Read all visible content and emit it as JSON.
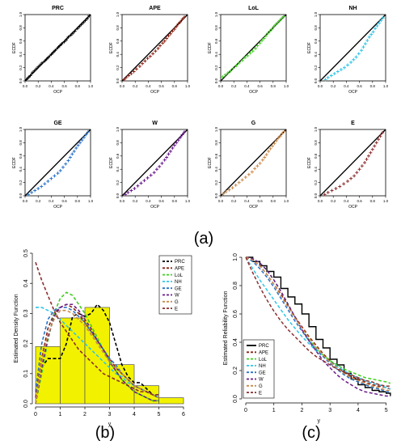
{
  "panel_labels": [
    "(a)",
    "(b)",
    "(c)"
  ],
  "chart_data": [
    {
      "type": "scatter",
      "panel": "(a)",
      "layout": "grid 2x4",
      "xlabel": "OCP",
      "ylabel": "ECDF",
      "xlim": [
        0,
        1
      ],
      "ylim": [
        0,
        1
      ],
      "xticks": [
        "0.0",
        "0.2",
        "0.4",
        "0.6",
        "0.8",
        "1.0"
      ],
      "yticks": [
        "0.0",
        "0.2",
        "0.4",
        "0.6",
        "0.8",
        "1.0"
      ],
      "reference_line": "y = x",
      "subplots": [
        {
          "title": "PRC",
          "color": "#000000",
          "ocp": [
            0.02,
            0.05,
            0.08,
            0.11,
            0.14,
            0.17,
            0.2,
            0.23,
            0.26,
            0.3,
            0.33,
            0.36,
            0.4,
            0.43,
            0.46,
            0.5,
            0.53,
            0.56,
            0.6,
            0.63,
            0.66,
            0.7,
            0.73,
            0.76,
            0.8,
            0.83,
            0.86,
            0.89,
            0.92,
            0.95,
            0.98
          ],
          "ecdf": [
            0.02,
            0.05,
            0.08,
            0.12,
            0.15,
            0.18,
            0.21,
            0.24,
            0.27,
            0.3,
            0.33,
            0.36,
            0.4,
            0.43,
            0.46,
            0.5,
            0.53,
            0.56,
            0.59,
            0.62,
            0.66,
            0.69,
            0.72,
            0.75,
            0.79,
            0.82,
            0.85,
            0.88,
            0.91,
            0.94,
            0.98
          ]
        },
        {
          "title": "APE",
          "color": "#8b2213",
          "ocp": [
            0.03,
            0.06,
            0.1,
            0.14,
            0.18,
            0.22,
            0.27,
            0.31,
            0.35,
            0.39,
            0.43,
            0.47,
            0.51,
            0.55,
            0.58,
            0.62,
            0.65,
            0.68,
            0.71,
            0.74,
            0.77,
            0.8,
            0.83,
            0.86,
            0.89,
            0.92,
            0.95
          ],
          "ecdf": [
            0.02,
            0.05,
            0.08,
            0.11,
            0.14,
            0.18,
            0.22,
            0.26,
            0.3,
            0.34,
            0.37,
            0.41,
            0.45,
            0.49,
            0.53,
            0.57,
            0.6,
            0.64,
            0.68,
            0.71,
            0.75,
            0.78,
            0.82,
            0.86,
            0.89,
            0.93,
            0.96
          ]
        },
        {
          "title": "LoL",
          "color": "#3fcf1f",
          "ocp": [
            0.03,
            0.07,
            0.11,
            0.15,
            0.19,
            0.24,
            0.28,
            0.33,
            0.37,
            0.41,
            0.45,
            0.49,
            0.53,
            0.56,
            0.6,
            0.63,
            0.66,
            0.69,
            0.72,
            0.75,
            0.78,
            0.81,
            0.84,
            0.87,
            0.9,
            0.93,
            0.96
          ],
          "ecdf": [
            0.06,
            0.09,
            0.12,
            0.15,
            0.19,
            0.23,
            0.27,
            0.31,
            0.35,
            0.38,
            0.42,
            0.45,
            0.49,
            0.53,
            0.57,
            0.61,
            0.64,
            0.68,
            0.72,
            0.75,
            0.78,
            0.82,
            0.85,
            0.88,
            0.91,
            0.94,
            0.97
          ]
        },
        {
          "title": "NH",
          "color": "#2ec5e8",
          "ocp": [
            0.08,
            0.12,
            0.17,
            0.22,
            0.27,
            0.32,
            0.37,
            0.42,
            0.47,
            0.51,
            0.55,
            0.59,
            0.63,
            0.66,
            0.69,
            0.72,
            0.75,
            0.78,
            0.81,
            0.84,
            0.87,
            0.9,
            0.93,
            0.96
          ],
          "ecdf": [
            0.02,
            0.05,
            0.08,
            0.11,
            0.14,
            0.17,
            0.2,
            0.24,
            0.28,
            0.32,
            0.36,
            0.41,
            0.46,
            0.51,
            0.56,
            0.61,
            0.66,
            0.7,
            0.74,
            0.79,
            0.83,
            0.87,
            0.91,
            0.95
          ]
        },
        {
          "title": "GE",
          "color": "#2a73c8",
          "ocp": [
            0.05,
            0.1,
            0.15,
            0.2,
            0.25,
            0.3,
            0.35,
            0.4,
            0.45,
            0.5,
            0.54,
            0.58,
            0.62,
            0.66,
            0.69,
            0.72,
            0.75,
            0.78,
            0.81,
            0.84,
            0.87,
            0.9,
            0.93,
            0.96
          ],
          "ecdf": [
            0.02,
            0.05,
            0.08,
            0.11,
            0.14,
            0.18,
            0.22,
            0.26,
            0.3,
            0.34,
            0.38,
            0.43,
            0.48,
            0.53,
            0.58,
            0.63,
            0.67,
            0.72,
            0.76,
            0.8,
            0.84,
            0.88,
            0.92,
            0.96
          ]
        },
        {
          "title": "W",
          "color": "#6a1b8a",
          "ocp": [
            0.05,
            0.09,
            0.14,
            0.19,
            0.24,
            0.29,
            0.34,
            0.39,
            0.44,
            0.49,
            0.53,
            0.57,
            0.61,
            0.65,
            0.68,
            0.71,
            0.74,
            0.77,
            0.8,
            0.83,
            0.86,
            0.89,
            0.92,
            0.95
          ],
          "ecdf": [
            0.02,
            0.05,
            0.08,
            0.11,
            0.15,
            0.19,
            0.23,
            0.27,
            0.31,
            0.35,
            0.4,
            0.44,
            0.49,
            0.54,
            0.58,
            0.63,
            0.67,
            0.72,
            0.76,
            0.8,
            0.84,
            0.88,
            0.92,
            0.96
          ]
        },
        {
          "title": "G",
          "color": "#c98a4b",
          "ocp": [
            0.04,
            0.08,
            0.13,
            0.18,
            0.23,
            0.28,
            0.33,
            0.38,
            0.43,
            0.48,
            0.52,
            0.56,
            0.6,
            0.64,
            0.67,
            0.7,
            0.73,
            0.76,
            0.79,
            0.82,
            0.85,
            0.88,
            0.91,
            0.94,
            0.97
          ],
          "ecdf": [
            0.03,
            0.06,
            0.09,
            0.12,
            0.16,
            0.2,
            0.24,
            0.28,
            0.32,
            0.36,
            0.41,
            0.45,
            0.49,
            0.54,
            0.58,
            0.62,
            0.67,
            0.71,
            0.75,
            0.79,
            0.83,
            0.87,
            0.9,
            0.94,
            0.97
          ]
        },
        {
          "title": "E",
          "color": "#8b2e2e",
          "ocp": [
            0.07,
            0.12,
            0.18,
            0.24,
            0.3,
            0.36,
            0.42,
            0.47,
            0.52,
            0.56,
            0.6,
            0.64,
            0.68,
            0.71,
            0.74,
            0.77,
            0.8,
            0.83,
            0.86,
            0.89,
            0.92,
            0.95
          ],
          "ecdf": [
            0.02,
            0.05,
            0.08,
            0.11,
            0.14,
            0.18,
            0.22,
            0.26,
            0.3,
            0.35,
            0.4,
            0.45,
            0.5,
            0.55,
            0.6,
            0.65,
            0.7,
            0.75,
            0.8,
            0.85,
            0.9,
            0.95
          ]
        }
      ]
    },
    {
      "type": "bar",
      "panel": "(b)",
      "xlabel": "y",
      "ylabel": "Estimated Density Function",
      "xlim": [
        0,
        6
      ],
      "ylim": [
        0,
        0.5
      ],
      "xticks": [
        "0",
        "1",
        "2",
        "3",
        "4",
        "5",
        "6"
      ],
      "yticks": [
        "0.0",
        "0.1",
        "0.2",
        "0.3",
        "0.4",
        "0.5"
      ],
      "histogram": {
        "bin_edges": [
          0,
          1,
          2,
          3,
          4,
          5,
          6
        ],
        "densities": [
          0.19,
          0.285,
          0.32,
          0.13,
          0.06,
          0.02
        ],
        "fill": "#f2f200",
        "stroke": "#555555"
      },
      "curves_x": [
        0,
        0.25,
        0.5,
        0.75,
        1,
        1.25,
        1.5,
        1.75,
        2,
        2.25,
        2.5,
        2.75,
        3,
        3.25,
        3.5,
        3.75,
        4,
        4.25,
        4.5,
        4.75,
        5
      ],
      "series": [
        {
          "name": "PRC",
          "color": "#000000",
          "values": [
            0.0,
            0.12,
            0.15,
            0.15,
            0.15,
            0.2,
            0.29,
            0.3,
            0.29,
            0.3,
            0.33,
            0.31,
            0.27,
            0.2,
            0.13,
            0.09,
            0.07,
            0.07,
            0.05,
            0.03,
            0.02
          ]
        },
        {
          "name": "APE",
          "color": "#8b2213",
          "values": [
            0.02,
            0.15,
            0.25,
            0.3,
            0.32,
            0.33,
            0.32,
            0.3,
            0.27,
            0.24,
            0.21,
            0.18,
            0.15,
            0.12,
            0.1,
            0.08,
            0.06,
            0.05,
            0.04,
            0.03,
            0.02
          ]
        },
        {
          "name": "LoL",
          "color": "#3fcf1f",
          "values": [
            0.0,
            0.1,
            0.21,
            0.3,
            0.35,
            0.37,
            0.36,
            0.33,
            0.3,
            0.26,
            0.22,
            0.18,
            0.14,
            0.11,
            0.08,
            0.06,
            0.04,
            0.03,
            0.02,
            0.01,
            0.01
          ]
        },
        {
          "name": "NH",
          "color": "#2ec5e8",
          "values": [
            0.32,
            0.32,
            0.31,
            0.3,
            0.28,
            0.26,
            0.24,
            0.22,
            0.2,
            0.18,
            0.16,
            0.14,
            0.12,
            0.1,
            0.09,
            0.07,
            0.06,
            0.05,
            0.04,
            0.03,
            0.03
          ]
        },
        {
          "name": "GE",
          "color": "#2a73c8",
          "values": [
            0.04,
            0.2,
            0.28,
            0.31,
            0.32,
            0.32,
            0.31,
            0.29,
            0.27,
            0.24,
            0.21,
            0.18,
            0.15,
            0.13,
            0.1,
            0.08,
            0.06,
            0.05,
            0.04,
            0.03,
            0.02
          ]
        },
        {
          "name": "W",
          "color": "#6a1b8a",
          "values": [
            0.0,
            0.12,
            0.22,
            0.29,
            0.32,
            0.33,
            0.33,
            0.31,
            0.28,
            0.25,
            0.21,
            0.18,
            0.14,
            0.11,
            0.08,
            0.06,
            0.04,
            0.03,
            0.02,
            0.01,
            0.01
          ]
        },
        {
          "name": "G",
          "color": "#c98a4b",
          "values": [
            0.0,
            0.14,
            0.23,
            0.28,
            0.31,
            0.31,
            0.3,
            0.28,
            0.26,
            0.23,
            0.2,
            0.17,
            0.14,
            0.12,
            0.1,
            0.08,
            0.06,
            0.05,
            0.04,
            0.03,
            0.02
          ]
        },
        {
          "name": "E",
          "color": "#8b2e2e",
          "values": [
            0.47,
            0.41,
            0.36,
            0.31,
            0.27,
            0.24,
            0.21,
            0.18,
            0.16,
            0.14,
            0.12,
            0.1,
            0.09,
            0.08,
            0.07,
            0.06,
            0.05,
            0.04,
            0.04,
            0.03,
            0.03
          ]
        }
      ],
      "legend": "top-right"
    },
    {
      "type": "line",
      "panel": "(c)",
      "xlabel": "y",
      "ylabel": "Estimated Reliability Function",
      "xlim": [
        0,
        5.2
      ],
      "ylim": [
        0,
        1
      ],
      "xticks": [
        "0",
        "1",
        "2",
        "3",
        "4",
        "5"
      ],
      "yticks": [
        "0.0",
        "0.2",
        "0.4",
        "0.6",
        "0.8",
        "1.0"
      ],
      "x": [
        0,
        0.25,
        0.5,
        0.75,
        1,
        1.25,
        1.5,
        1.75,
        2,
        2.25,
        2.5,
        2.75,
        3,
        3.25,
        3.5,
        3.75,
        4,
        4.25,
        4.5,
        4.75,
        5,
        5.15
      ],
      "series": [
        {
          "name": "PRC",
          "color": "#000000",
          "step": true,
          "values": [
            1.0,
            0.97,
            0.94,
            0.9,
            0.86,
            0.78,
            0.72,
            0.67,
            0.6,
            0.51,
            0.42,
            0.36,
            0.28,
            0.24,
            0.18,
            0.14,
            0.1,
            0.08,
            0.06,
            0.05,
            0.04,
            0.02
          ]
        },
        {
          "name": "APE",
          "color": "#8b2213",
          "values": [
            1.0,
            0.98,
            0.94,
            0.88,
            0.81,
            0.74,
            0.66,
            0.58,
            0.51,
            0.44,
            0.38,
            0.32,
            0.27,
            0.23,
            0.19,
            0.16,
            0.14,
            0.12,
            0.1,
            0.09,
            0.08,
            0.07
          ]
        },
        {
          "name": "LoL",
          "color": "#3fcf1f",
          "values": [
            1.0,
            0.99,
            0.96,
            0.91,
            0.84,
            0.76,
            0.67,
            0.58,
            0.49,
            0.42,
            0.36,
            0.31,
            0.27,
            0.24,
            0.21,
            0.19,
            0.17,
            0.15,
            0.14,
            0.13,
            0.12,
            0.11
          ]
        },
        {
          "name": "NH",
          "color": "#2ec5e8",
          "values": [
            1.0,
            0.92,
            0.84,
            0.77,
            0.7,
            0.63,
            0.56,
            0.5,
            0.44,
            0.39,
            0.34,
            0.3,
            0.26,
            0.23,
            0.2,
            0.17,
            0.15,
            0.13,
            0.11,
            0.1,
            0.08,
            0.07
          ]
        },
        {
          "name": "GE",
          "color": "#2a73c8",
          "values": [
            1.0,
            0.97,
            0.92,
            0.86,
            0.79,
            0.71,
            0.63,
            0.55,
            0.48,
            0.41,
            0.35,
            0.3,
            0.25,
            0.21,
            0.17,
            0.14,
            0.12,
            0.1,
            0.08,
            0.07,
            0.05,
            0.05
          ]
        },
        {
          "name": "W",
          "color": "#6a1b8a",
          "values": [
            1.0,
            0.99,
            0.96,
            0.91,
            0.84,
            0.76,
            0.67,
            0.58,
            0.49,
            0.41,
            0.34,
            0.27,
            0.22,
            0.17,
            0.13,
            0.1,
            0.07,
            0.05,
            0.04,
            0.03,
            0.02,
            0.02
          ]
        },
        {
          "name": "G",
          "color": "#c98a4b",
          "values": [
            1.0,
            0.98,
            0.94,
            0.88,
            0.81,
            0.73,
            0.65,
            0.57,
            0.5,
            0.43,
            0.37,
            0.31,
            0.26,
            0.22,
            0.18,
            0.15,
            0.13,
            0.11,
            0.09,
            0.08,
            0.06,
            0.06
          ]
        },
        {
          "name": "E",
          "color": "#8b2e2e",
          "values": [
            1.0,
            0.89,
            0.79,
            0.7,
            0.62,
            0.55,
            0.49,
            0.44,
            0.39,
            0.34,
            0.3,
            0.27,
            0.24,
            0.21,
            0.19,
            0.17,
            0.15,
            0.13,
            0.12,
            0.1,
            0.09,
            0.09
          ]
        }
      ],
      "legend": "bottom-left"
    }
  ]
}
